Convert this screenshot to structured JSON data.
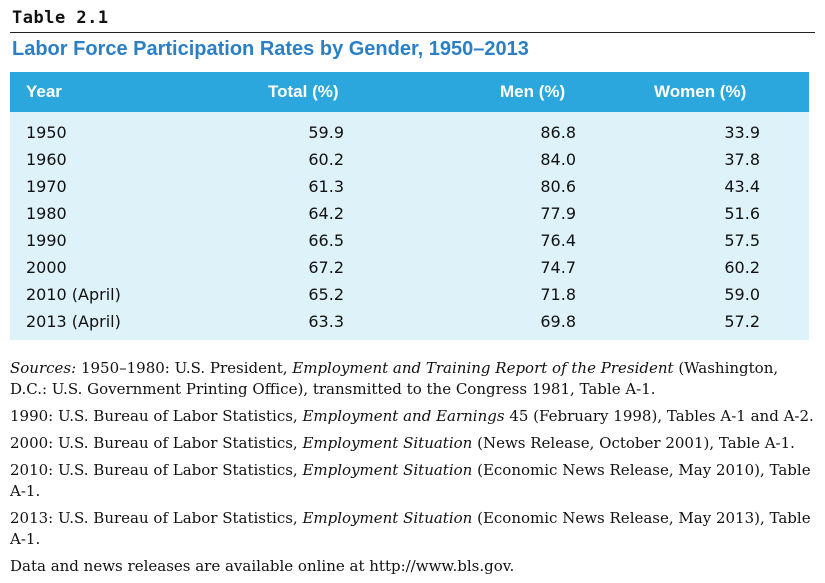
{
  "table_label": "Table 2.1",
  "title": "Labor Force Participation Rates by Gender, 1950–2013",
  "headers": [
    "Year",
    "Total (%)",
    "Men (%)",
    "Women (%)"
  ],
  "rows": [
    {
      "year": "1950",
      "total": "59.9",
      "men": "86.8",
      "women": "33.9"
    },
    {
      "year": "1960",
      "total": "60.2",
      "men": "84.0",
      "women": "37.8"
    },
    {
      "year": "1970",
      "total": "61.3",
      "men": "80.6",
      "women": "43.4"
    },
    {
      "year": "1980",
      "total": "64.2",
      "men": "77.9",
      "women": "51.6"
    },
    {
      "year": "1990",
      "total": "66.5",
      "men": "76.4",
      "women": "57.5"
    },
    {
      "year": "2000",
      "total": "67.2",
      "men": "74.7",
      "women": "60.2"
    },
    {
      "year": "2010 (April)",
      "total": "65.2",
      "men": "71.8",
      "women": "59.0"
    },
    {
      "year": "2013 (April)",
      "total": "63.3",
      "men": "69.8",
      "women": "57.2"
    }
  ],
  "sources": {
    "s1_prefix": "Sources:",
    "s1_a": " 1950–1980: U.S. President, ",
    "s1_title": "Employment and Training Report of the President",
    "s1_b": " (Washington, D.C.: U.S. Government Printing Office), transmitted to the Congress 1981, Table A-1.",
    "s2_a": "1990: U.S. Bureau of Labor Statistics, ",
    "s2_title": "Employment and Earnings",
    "s2_b": " 45 (February 1998), Tables A-1 and A-2.",
    "s3_a": "2000: U.S. Bureau of Labor Statistics, ",
    "s3_title": "Employment Situation",
    "s3_b": " (News Release, October 2001), Table A-1.",
    "s4_a": "2010: U.S. Bureau of Labor Statistics, ",
    "s4_title": "Employment Situation",
    "s4_b": " (Economic News Release, May 2010), Table A-1.",
    "s5_a": "2013: U.S. Bureau of Labor Statistics, ",
    "s5_title": "Employment Situation",
    "s5_b": " (Economic News Release, May 2013), Table A-1.",
    "s6": "Data and news releases are available online at http://www.bls.gov."
  }
}
